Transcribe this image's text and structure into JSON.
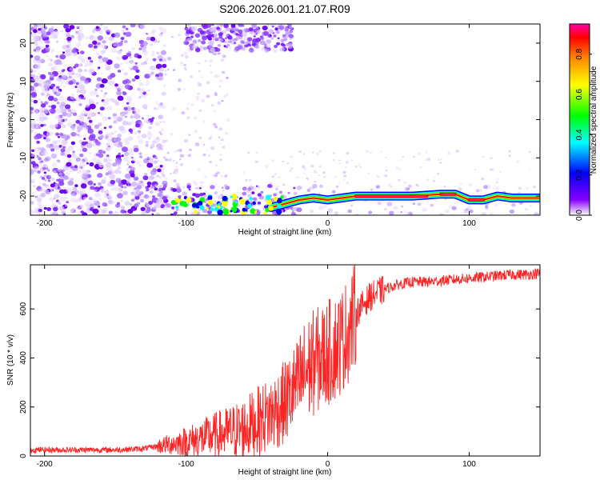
{
  "title": "S206.2026.001.21.07.R09",
  "chart_data": [
    {
      "type": "heatmap",
      "name": "spectrogram",
      "xlabel": "Height of straight line (km)",
      "ylabel": "Frequency (Hz)",
      "xlim": [
        -210,
        150
      ],
      "ylim": [
        -25,
        25
      ],
      "xticks": [
        -200,
        -100,
        0,
        100
      ],
      "xtick_labels": [
        "-200",
        "-100",
        "0",
        "100"
      ],
      "yticks": [
        -20,
        -10,
        0,
        10,
        20
      ],
      "ytick_labels": [
        "-20",
        "-10",
        "0",
        "10",
        "20"
      ],
      "colorbar": {
        "label": "Normalized spectral amplitude",
        "range": [
          0,
          0.95
        ],
        "ticks": [
          0.0,
          0.2,
          0.4,
          0.6,
          0.8
        ],
        "tick_labels": [
          "0.0",
          "0.2",
          "0.4",
          "0.6",
          "0.8"
        ],
        "colormap": [
          "#ffffff",
          "#8800ff",
          "#0000ff",
          "#00ffff",
          "#00ff00",
          "#ffff00",
          "#ff8800",
          "#ff0000",
          "#ff00aa"
        ]
      },
      "carrier_trace": {
        "height_km": [
          -40,
          -30,
          -20,
          -10,
          0,
          10,
          20,
          40,
          60,
          80,
          90,
          100,
          110,
          120,
          130,
          150
        ],
        "frequency_hz": [
          -23,
          -22,
          -21,
          -20.5,
          -21,
          -20.5,
          -20,
          -20,
          -20,
          -19.5,
          -19.5,
          -21,
          -21,
          -20,
          -20.5,
          -20.5
        ]
      }
    },
    {
      "type": "line",
      "name": "snr",
      "xlabel": "Height of straight line (km)",
      "ylabel": "SNR (10 * v/v)",
      "xlim": [
        -210,
        150
      ],
      "ylim": [
        0,
        780
      ],
      "xticks": [
        -200,
        -100,
        0,
        100
      ],
      "xtick_labels": [
        "-200",
        "-100",
        "0",
        "100"
      ],
      "yticks": [
        0,
        200,
        400,
        600
      ],
      "ytick_labels": [
        "0",
        "200",
        "400",
        "600"
      ],
      "color": "#ff2222",
      "series": [
        {
          "name": "SNR",
          "x": [
            -210,
            -180,
            -150,
            -130,
            -120,
            -110,
            -100,
            -90,
            -80,
            -70,
            -60,
            -50,
            -40,
            -30,
            -25,
            -20,
            -15,
            -10,
            -5,
            0,
            5,
            10,
            15,
            20,
            25,
            30,
            40,
            50,
            60,
            70,
            80,
            90,
            100,
            110,
            120,
            130,
            140,
            150
          ],
          "y": [
            25,
            25,
            25,
            30,
            40,
            50,
            60,
            70,
            85,
            95,
            110,
            140,
            170,
            220,
            260,
            300,
            350,
            380,
            400,
            420,
            440,
            470,
            520,
            580,
            620,
            650,
            680,
            700,
            710,
            710,
            715,
            720,
            725,
            730,
            735,
            740,
            740,
            745
          ]
        }
      ]
    }
  ]
}
